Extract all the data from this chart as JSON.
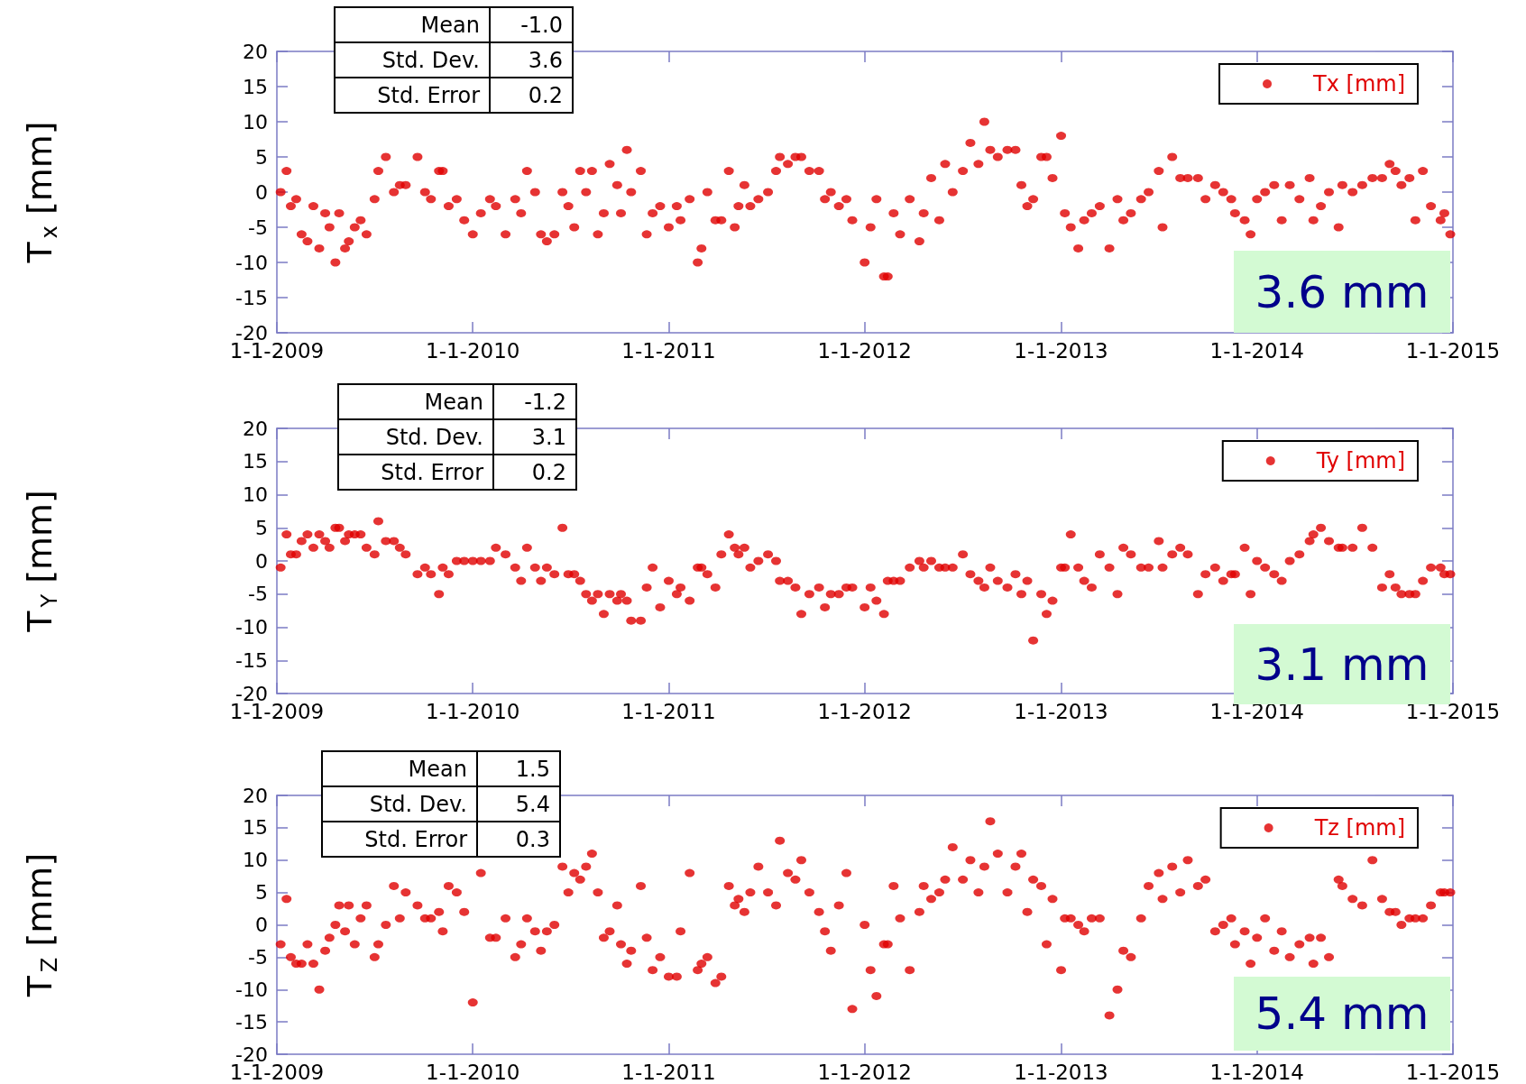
{
  "chart_data": [
    {
      "type": "scatter",
      "ylabel": "T$_{x}$ [mm]",
      "xlim": [
        "2009-01-01",
        "2015-01-01"
      ],
      "ylim": [
        -20,
        20
      ],
      "xticks": [
        {
          "value": "2009-01-01",
          "label": "1-1-2009"
        },
        {
          "value": "2010-01-01",
          "label": "1-1-2010"
        },
        {
          "value": "2011-01-01",
          "label": "1-1-2011"
        },
        {
          "value": "2012-01-01",
          "label": "1-1-2012"
        },
        {
          "value": "2013-01-01",
          "label": "1-1-2013"
        },
        {
          "value": "2014-01-01",
          "label": "1-1-2014"
        },
        {
          "value": "2015-01-01",
          "label": "1-1-2015"
        }
      ],
      "yticks": [
        -20,
        -15,
        -10,
        -5,
        0,
        5,
        10,
        15,
        20
      ],
      "grid": false,
      "legend": "top right",
      "marker": "circle",
      "annotations": [
        "Mean",
        "-1.0",
        "Std. Dev.",
        "3.6",
        "Std. Error",
        "0.2",
        "3.6 mm"
      ],
      "x": [
        "2009-01-08",
        "2009-01-19",
        "2009-01-27",
        "2009-02-06",
        "2009-02-16",
        "2009-02-27",
        "2009-03-10",
        "2009-03-21",
        "2009-04-01",
        "2009-04-09",
        "2009-04-20",
        "2009-04-27",
        "2009-05-08",
        "2009-05-15",
        "2009-05-26",
        "2009-06-06",
        "2009-06-17",
        "2009-07-02",
        "2009-07-09",
        "2009-07-23",
        "2009-08-07",
        "2009-08-18",
        "2009-08-29",
        "2009-09-20",
        "2009-10-04",
        "2009-10-15",
        "2009-10-30",
        "2009-11-06",
        "2009-11-17",
        "2009-12-02",
        "2009-12-16",
        "2010-01-01",
        "2010-01-16",
        "2010-02-02",
        "2010-02-13",
        "2010-03-03",
        "2010-03-21",
        "2010-04-01",
        "2010-04-12",
        "2010-04-27",
        "2010-05-08",
        "2010-05-19",
        "2010-06-02",
        "2010-06-17",
        "2010-06-28",
        "2010-07-09",
        "2010-07-20",
        "2010-07-31",
        "2010-08-11",
        "2010-08-22",
        "2010-09-02",
        "2010-09-13",
        "2010-09-27",
        "2010-10-04",
        "2010-10-15",
        "2010-10-23",
        "2010-11-10",
        "2010-11-21",
        "2010-12-02",
        "2010-12-16",
        "2011-01-01",
        "2011-01-16",
        "2011-01-23",
        "2011-02-09",
        "2011-02-24",
        "2011-03-03",
        "2011-03-14",
        "2011-03-29",
        "2011-04-09",
        "2011-04-23",
        "2011-05-04",
        "2011-05-11",
        "2011-05-22",
        "2011-06-02",
        "2011-06-17",
        "2011-07-05",
        "2011-07-20",
        "2011-07-27",
        "2011-08-11",
        "2011-08-25",
        "2011-09-05",
        "2011-09-20",
        "2011-10-08",
        "2011-10-19",
        "2011-10-30",
        "2011-11-14",
        "2011-11-28",
        "2011-12-09",
        "2012-01-01",
        "2012-01-12",
        "2012-01-23",
        "2012-02-06",
        "2012-02-13",
        "2012-02-24",
        "2012-03-07",
        "2012-03-25",
        "2012-04-12",
        "2012-04-20",
        "2012-05-04",
        "2012-05-19",
        "2012-05-30",
        "2012-06-13",
        "2012-07-02",
        "2012-07-16",
        "2012-07-31",
        "2012-08-11",
        "2012-08-22",
        "2012-09-05",
        "2012-09-23",
        "2012-10-08",
        "2012-10-19",
        "2012-10-30",
        "2012-11-10",
        "2012-11-25",
        "2012-12-05",
        "2012-12-16",
        "2013-01-01",
        "2013-01-08",
        "2013-01-19",
        "2013-02-02",
        "2013-02-13",
        "2013-02-27",
        "2013-03-14",
        "2013-04-01",
        "2013-04-16",
        "2013-04-27",
        "2013-05-11",
        "2013-05-30",
        "2013-06-13",
        "2013-07-02",
        "2013-07-09",
        "2013-07-27",
        "2013-08-11",
        "2013-08-25",
        "2013-09-13",
        "2013-09-27",
        "2013-10-15",
        "2013-10-30",
        "2013-11-14",
        "2013-11-21",
        "2013-12-09",
        "2013-12-20",
        "2014-01-01",
        "2014-01-16",
        "2014-02-02",
        "2014-02-16",
        "2014-03-03",
        "2014-03-21",
        "2014-04-09",
        "2014-04-16",
        "2014-04-30",
        "2014-05-15",
        "2014-06-02",
        "2014-06-09",
        "2014-06-28",
        "2014-07-16",
        "2014-08-04",
        "2014-08-22",
        "2014-09-05",
        "2014-09-16",
        "2014-09-27",
        "2014-10-12",
        "2014-10-23",
        "2014-11-06",
        "2014-11-21",
        "2014-12-09",
        "2014-12-16",
        "2014-12-27"
      ],
      "series": [
        {
          "name": "Tx [mm]",
          "color": "#e00000",
          "values": [
            0,
            3,
            -2,
            -1,
            -6,
            -7,
            -2,
            -8,
            -3,
            -5,
            -10,
            -3,
            -8,
            -7,
            -5,
            -4,
            -6,
            -1,
            3,
            5,
            0,
            1,
            1,
            5,
            0,
            -1,
            3,
            3,
            -2,
            -1,
            -4,
            -6,
            -3,
            -1,
            -2,
            -6,
            -1,
            -3,
            3,
            0,
            -6,
            -7,
            -6,
            0,
            -2,
            -5,
            3,
            0,
            3,
            -6,
            -3,
            4,
            1,
            -3,
            6,
            0,
            3,
            -6,
            -3,
            -2,
            -5,
            -2,
            -4,
            -1,
            -10,
            -8,
            0,
            -4,
            -4,
            3,
            -5,
            -2,
            1,
            -2,
            -1,
            0,
            3,
            5,
            4,
            5,
            5,
            3,
            3,
            -1,
            0,
            -2,
            -1,
            -4,
            -10,
            -5,
            -1,
            -12,
            -12,
            -3,
            -6,
            -1,
            -7,
            -3,
            2,
            -4,
            4,
            0,
            3,
            7,
            4,
            10,
            6,
            5,
            6,
            6,
            1,
            -2,
            -1,
            5,
            5,
            2,
            8,
            -3,
            -5,
            -8,
            -4,
            -3,
            -2,
            -8,
            -1,
            -4,
            -3,
            -1,
            0,
            3,
            -5,
            5,
            2,
            2,
            2,
            -1,
            1,
            0,
            -1,
            -3,
            -4,
            -6,
            -1,
            0,
            1,
            -4,
            1,
            -1,
            2,
            -4,
            -2,
            0,
            -5,
            1,
            0,
            1,
            2,
            2,
            4,
            3,
            1,
            2,
            -4,
            3,
            -2,
            -4,
            -3,
            -6
          ]
        }
      ]
    },
    {
      "type": "scatter",
      "ylabel": "T$_{Y}$ [mm]",
      "xlim": [
        "2009-01-01",
        "2015-01-01"
      ],
      "ylim": [
        -20,
        20
      ],
      "xticks": [
        {
          "value": "2009-01-01",
          "label": "1-1-2009"
        },
        {
          "value": "2010-01-01",
          "label": "1-1-2010"
        },
        {
          "value": "2011-01-01",
          "label": "1-1-2011"
        },
        {
          "value": "2012-01-01",
          "label": "1-1-2012"
        },
        {
          "value": "2013-01-01",
          "label": "1-1-2013"
        },
        {
          "value": "2014-01-01",
          "label": "1-1-2014"
        },
        {
          "value": "2015-01-01",
          "label": "1-1-2015"
        }
      ],
      "yticks": [
        -20,
        -15,
        -10,
        -5,
        0,
        5,
        10,
        15,
        20
      ],
      "grid": false,
      "legend": "top right",
      "marker": "circle",
      "annotations": [
        "Mean",
        "-1.2",
        "Std. Dev.",
        "3.1",
        "Std. Error",
        "0.2",
        "3.1 mm"
      ],
      "x": [
        "2009-01-08",
        "2009-01-19",
        "2009-01-27",
        "2009-02-06",
        "2009-02-16",
        "2009-02-27",
        "2009-03-10",
        "2009-03-21",
        "2009-04-01",
        "2009-04-09",
        "2009-04-20",
        "2009-04-27",
        "2009-05-08",
        "2009-05-15",
        "2009-05-26",
        "2009-06-06",
        "2009-06-17",
        "2009-07-02",
        "2009-07-09",
        "2009-07-23",
        "2009-08-07",
        "2009-08-18",
        "2009-08-29",
        "2009-09-20",
        "2009-10-04",
        "2009-10-15",
        "2009-10-30",
        "2009-11-06",
        "2009-11-17",
        "2009-12-02",
        "2009-12-16",
        "2010-01-01",
        "2010-01-16",
        "2010-02-02",
        "2010-02-13",
        "2010-03-03",
        "2010-03-21",
        "2010-04-01",
        "2010-04-12",
        "2010-04-27",
        "2010-05-08",
        "2010-05-19",
        "2010-06-02",
        "2010-06-17",
        "2010-06-28",
        "2010-07-09",
        "2010-07-20",
        "2010-07-31",
        "2010-08-11",
        "2010-08-22",
        "2010-09-02",
        "2010-09-13",
        "2010-09-27",
        "2010-10-04",
        "2010-10-15",
        "2010-10-23",
        "2010-11-10",
        "2010-11-21",
        "2010-12-02",
        "2010-12-16",
        "2011-01-01",
        "2011-01-16",
        "2011-01-23",
        "2011-02-09",
        "2011-02-24",
        "2011-03-03",
        "2011-03-14",
        "2011-03-29",
        "2011-04-09",
        "2011-04-23",
        "2011-05-04",
        "2011-05-11",
        "2011-05-22",
        "2011-06-02",
        "2011-06-17",
        "2011-07-05",
        "2011-07-20",
        "2011-07-27",
        "2011-08-11",
        "2011-08-25",
        "2011-09-05",
        "2011-09-20",
        "2011-10-08",
        "2011-10-19",
        "2011-10-30",
        "2011-11-14",
        "2011-11-28",
        "2011-12-09",
        "2012-01-01",
        "2012-01-12",
        "2012-01-23",
        "2012-02-06",
        "2012-02-13",
        "2012-02-24",
        "2012-03-07",
        "2012-03-25",
        "2012-04-12",
        "2012-04-20",
        "2012-05-04",
        "2012-05-19",
        "2012-05-30",
        "2012-06-13",
        "2012-07-02",
        "2012-07-16",
        "2012-07-31",
        "2012-08-11",
        "2012-08-22",
        "2012-09-05",
        "2012-09-23",
        "2012-10-08",
        "2012-10-19",
        "2012-10-30",
        "2012-11-10",
        "2012-11-25",
        "2012-12-05",
        "2012-12-16",
        "2013-01-01",
        "2013-01-08",
        "2013-01-19",
        "2013-02-02",
        "2013-02-13",
        "2013-02-27",
        "2013-03-14",
        "2013-04-01",
        "2013-04-16",
        "2013-04-27",
        "2013-05-11",
        "2013-05-30",
        "2013-06-13",
        "2013-07-02",
        "2013-07-09",
        "2013-07-27",
        "2013-08-11",
        "2013-08-25",
        "2013-09-13",
        "2013-09-27",
        "2013-10-15",
        "2013-10-30",
        "2013-11-14",
        "2013-11-21",
        "2013-12-09",
        "2013-12-20",
        "2014-01-01",
        "2014-01-16",
        "2014-02-02",
        "2014-02-16",
        "2014-03-03",
        "2014-03-21",
        "2014-04-09",
        "2014-04-16",
        "2014-04-30",
        "2014-05-15",
        "2014-06-02",
        "2014-06-09",
        "2014-06-28",
        "2014-07-16",
        "2014-08-04",
        "2014-08-22",
        "2014-09-05",
        "2014-09-16",
        "2014-09-27",
        "2014-10-12",
        "2014-10-23",
        "2014-11-06",
        "2014-11-21",
        "2014-12-09",
        "2014-12-16",
        "2014-12-27"
      ],
      "series": [
        {
          "name": "Ty [mm]",
          "color": "#e00000",
          "values": [
            -1,
            4,
            1,
            1,
            3,
            4,
            2,
            4,
            3,
            2,
            5,
            5,
            3,
            4,
            4,
            4,
            2,
            1,
            6,
            3,
            3,
            2,
            1,
            -2,
            -1,
            -2,
            -5,
            -1,
            -2,
            0,
            0,
            0,
            0,
            0,
            2,
            1,
            -1,
            -3,
            2,
            -1,
            -3,
            -1,
            -2,
            5,
            -2,
            -2,
            -3,
            -5,
            -6,
            -5,
            -8,
            -5,
            -6,
            -5,
            -6,
            -9,
            -9,
            -4,
            -1,
            -7,
            -3,
            -5,
            -4,
            -6,
            -1,
            -1,
            -2,
            -4,
            1,
            4,
            2,
            1,
            2,
            -1,
            0,
            1,
            0,
            -3,
            -3,
            -4,
            -8,
            -5,
            -4,
            -7,
            -5,
            -5,
            -4,
            -4,
            -7,
            -4,
            -6,
            -8,
            -3,
            -3,
            -3,
            -1,
            0,
            -1,
            0,
            -1,
            -1,
            -1,
            1,
            -2,
            -3,
            -4,
            -1,
            -3,
            -4,
            -2,
            -5,
            -3,
            -12,
            -5,
            -8,
            -6,
            -1,
            -1,
            4,
            -1,
            -3,
            -4,
            1,
            -1,
            -5,
            2,
            1,
            -1,
            -1,
            3,
            -1,
            1,
            2,
            1,
            -5,
            -2,
            -1,
            -3,
            -2,
            -2,
            2,
            -5,
            0,
            -1,
            -2,
            -3,
            0,
            1,
            3,
            4,
            5,
            3,
            2,
            2,
            2,
            5,
            2,
            -4,
            -2,
            -4,
            -5,
            -5,
            -5,
            -3,
            -1,
            -1,
            -2,
            -2
          ]
        }
      ]
    },
    {
      "type": "scatter",
      "ylabel": "T$_{Z}$ [mm]",
      "xlim": [
        "2009-01-01",
        "2015-01-01"
      ],
      "ylim": [
        -20,
        20
      ],
      "xticks": [
        {
          "value": "2009-01-01",
          "label": "1-1-2009"
        },
        {
          "value": "2010-01-01",
          "label": "1-1-2010"
        },
        {
          "value": "2011-01-01",
          "label": "1-1-2011"
        },
        {
          "value": "2012-01-01",
          "label": "1-1-2012"
        },
        {
          "value": "2013-01-01",
          "label": "1-1-2013"
        },
        {
          "value": "2014-01-01",
          "label": "1-1-2014"
        },
        {
          "value": "2015-01-01",
          "label": "1-1-2015"
        }
      ],
      "yticks": [
        -20,
        -15,
        -10,
        -5,
        0,
        5,
        10,
        15,
        20
      ],
      "grid": false,
      "legend": "top right",
      "marker": "circle",
      "annotations": [
        "Mean",
        "1.5",
        "Std. Dev.",
        "5.4",
        "Std. Error",
        "0.3",
        "5.4 mm"
      ],
      "x": [
        "2009-01-08",
        "2009-01-19",
        "2009-01-27",
        "2009-02-06",
        "2009-02-16",
        "2009-02-27",
        "2009-03-10",
        "2009-03-21",
        "2009-04-01",
        "2009-04-09",
        "2009-04-20",
        "2009-04-27",
        "2009-05-08",
        "2009-05-15",
        "2009-05-26",
        "2009-06-06",
        "2009-06-17",
        "2009-07-02",
        "2009-07-09",
        "2009-07-23",
        "2009-08-07",
        "2009-08-18",
        "2009-08-29",
        "2009-09-20",
        "2009-10-04",
        "2009-10-15",
        "2009-10-30",
        "2009-11-06",
        "2009-11-17",
        "2009-12-02",
        "2009-12-16",
        "2010-01-01",
        "2010-01-16",
        "2010-02-02",
        "2010-02-13",
        "2010-03-03",
        "2010-03-21",
        "2010-04-01",
        "2010-04-12",
        "2010-04-27",
        "2010-05-08",
        "2010-05-19",
        "2010-06-02",
        "2010-06-17",
        "2010-06-28",
        "2010-07-09",
        "2010-07-20",
        "2010-07-31",
        "2010-08-11",
        "2010-08-22",
        "2010-09-02",
        "2010-09-13",
        "2010-09-27",
        "2010-10-04",
        "2010-10-15",
        "2010-10-23",
        "2010-11-10",
        "2010-11-21",
        "2010-12-02",
        "2010-12-16",
        "2011-01-01",
        "2011-01-16",
        "2011-01-23",
        "2011-02-09",
        "2011-02-24",
        "2011-03-03",
        "2011-03-14",
        "2011-03-29",
        "2011-04-09",
        "2011-04-23",
        "2011-05-04",
        "2011-05-11",
        "2011-05-22",
        "2011-06-02",
        "2011-06-17",
        "2011-07-05",
        "2011-07-20",
        "2011-07-27",
        "2011-08-11",
        "2011-08-25",
        "2011-09-05",
        "2011-09-20",
        "2011-10-08",
        "2011-10-19",
        "2011-10-30",
        "2011-11-14",
        "2011-11-28",
        "2011-12-09",
        "2012-01-01",
        "2012-01-12",
        "2012-01-23",
        "2012-02-06",
        "2012-02-13",
        "2012-02-24",
        "2012-03-07",
        "2012-03-25",
        "2012-04-12",
        "2012-04-20",
        "2012-05-04",
        "2012-05-19",
        "2012-05-30",
        "2012-06-13",
        "2012-07-02",
        "2012-07-16",
        "2012-07-31",
        "2012-08-11",
        "2012-08-22",
        "2012-09-05",
        "2012-09-23",
        "2012-10-08",
        "2012-10-19",
        "2012-10-30",
        "2012-11-10",
        "2012-11-25",
        "2012-12-05",
        "2012-12-16",
        "2013-01-01",
        "2013-01-08",
        "2013-01-19",
        "2013-02-02",
        "2013-02-13",
        "2013-02-27",
        "2013-03-14",
        "2013-04-01",
        "2013-04-16",
        "2013-04-27",
        "2013-05-11",
        "2013-05-30",
        "2013-06-13",
        "2013-07-02",
        "2013-07-09",
        "2013-07-27",
        "2013-08-11",
        "2013-08-25",
        "2013-09-13",
        "2013-09-27",
        "2013-10-15",
        "2013-10-30",
        "2013-11-14",
        "2013-11-21",
        "2013-12-09",
        "2013-12-20",
        "2014-01-01",
        "2014-01-16",
        "2014-02-02",
        "2014-02-16",
        "2014-03-03",
        "2014-03-21",
        "2014-04-09",
        "2014-04-16",
        "2014-04-30",
        "2014-05-15",
        "2014-06-02",
        "2014-06-09",
        "2014-06-28",
        "2014-07-16",
        "2014-08-04",
        "2014-08-22",
        "2014-09-05",
        "2014-09-16",
        "2014-09-27",
        "2014-10-12",
        "2014-10-23",
        "2014-11-06",
        "2014-11-21",
        "2014-12-09",
        "2014-12-16",
        "2014-12-27"
      ],
      "series": [
        {
          "name": "Tz [mm]",
          "color": "#e00000",
          "values": [
            -3,
            4,
            -5,
            -6,
            -6,
            -3,
            -6,
            -10,
            -4,
            -2,
            0,
            3,
            -1,
            3,
            -3,
            1,
            3,
            -5,
            -3,
            0,
            6,
            1,
            5,
            3,
            1,
            1,
            2,
            -1,
            6,
            5,
            2,
            -12,
            8,
            -2,
            -2,
            1,
            -5,
            -3,
            1,
            -1,
            -4,
            -1,
            0,
            9,
            5,
            8,
            7,
            9,
            11,
            5,
            -2,
            -1,
            3,
            -3,
            -6,
            -4,
            6,
            -2,
            -7,
            -5,
            -8,
            -8,
            -1,
            8,
            -7,
            -6,
            -5,
            -9,
            -8,
            6,
            3,
            4,
            2,
            5,
            9,
            5,
            3,
            13,
            8,
            7,
            10,
            5,
            2,
            -1,
            -4,
            3,
            8,
            -13,
            0,
            -7,
            -11,
            -3,
            -3,
            6,
            1,
            -7,
            2,
            6,
            4,
            5,
            7,
            12,
            7,
            10,
            5,
            9,
            16,
            11,
            5,
            9,
            11,
            2,
            7,
            6,
            -3,
            4,
            -7,
            1,
            1,
            0,
            -1,
            1,
            1,
            -14,
            -10,
            -4,
            -5,
            1,
            6,
            8,
            4,
            9,
            5,
            10,
            6,
            7,
            -1,
            0,
            1,
            -3,
            -1,
            -6,
            -2,
            1,
            -4,
            -1,
            -5,
            -3,
            -2,
            -6,
            -2,
            -5,
            7,
            6,
            4,
            3,
            10,
            4,
            2,
            2,
            0,
            1,
            1,
            1,
            3,
            5,
            5,
            5
          ]
        }
      ]
    }
  ]
}
